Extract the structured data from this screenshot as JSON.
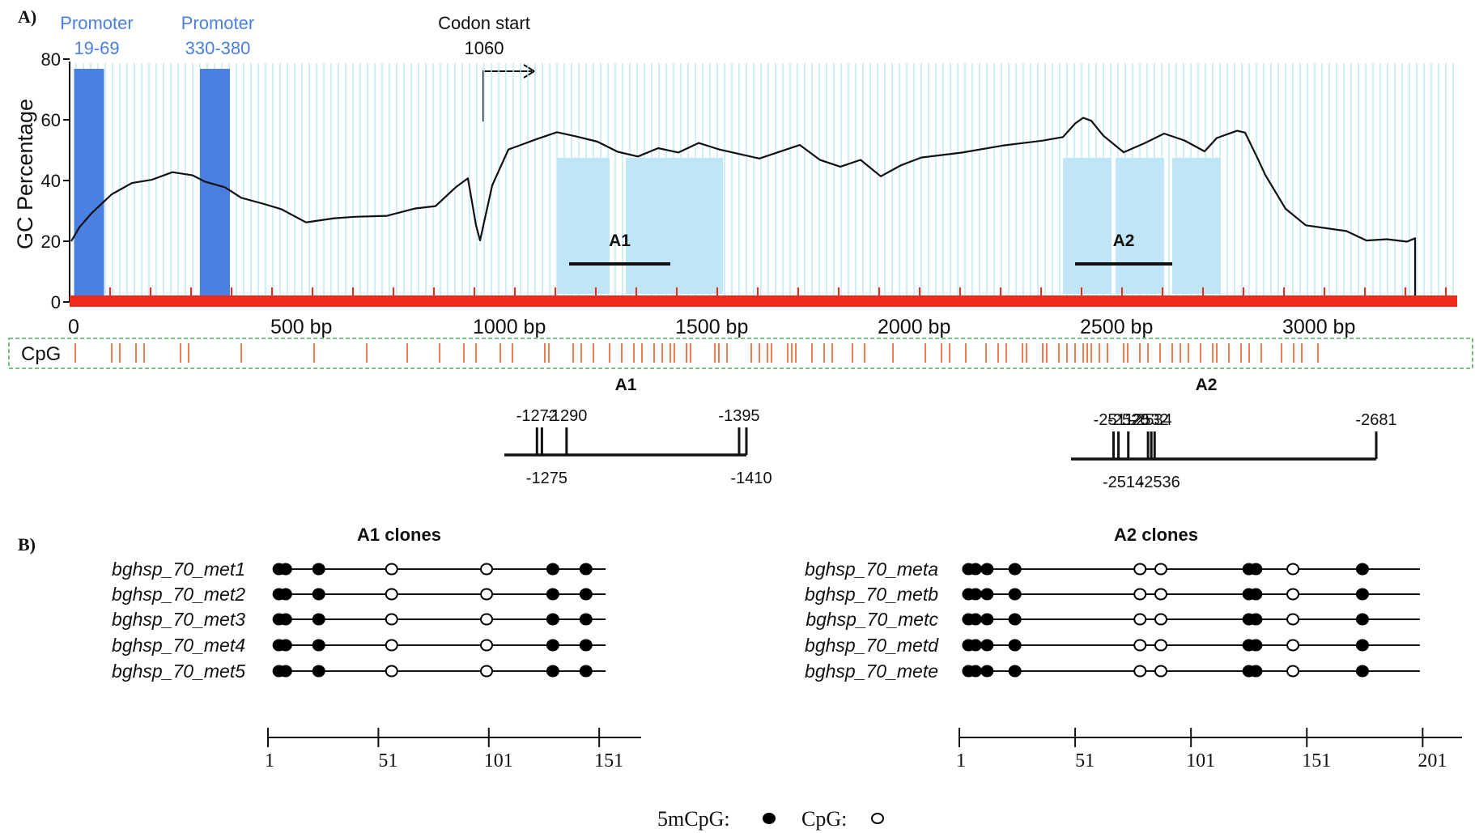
{
  "panel_a": {
    "label": "A)",
    "promoters": [
      {
        "title": "Promoter",
        "range": "19-69",
        "start": 19,
        "end": 69
      },
      {
        "title": "Promoter",
        "range": "330-380",
        "start": 330,
        "end": 380
      }
    ],
    "codon_start": {
      "title": "Codon start",
      "value": "1060",
      "position": 1000
    },
    "y_axis_label": "GC Percentage",
    "y_ticks": [
      {
        "value": 0,
        "label": "0"
      },
      {
        "value": 20,
        "label": "20"
      },
      {
        "value": 40,
        "label": "40"
      },
      {
        "value": 60,
        "label": "60"
      },
      {
        "value": 80,
        "label": "80"
      }
    ],
    "x_ticks": [
      {
        "value": 0,
        "label": "0"
      },
      {
        "value": 500,
        "label": "500  bp"
      },
      {
        "value": 1000,
        "label": "1000  bp"
      },
      {
        "value": 1500,
        "label": "1500  bp"
      },
      {
        "value": 2000,
        "label": "2000  bp"
      },
      {
        "value": 2500,
        "label": "2500  bp"
      },
      {
        "value": 3000,
        "label": "3000  bp"
      }
    ],
    "sequence_length": 3300,
    "regions": [
      {
        "label": "A1",
        "bar_start": 1230,
        "bar_end": 1480,
        "shaded": [
          [
            1200,
            1330
          ],
          [
            1370,
            1610
          ]
        ]
      },
      {
        "label": "A2",
        "bar_start": 2480,
        "bar_end": 2720,
        "shaded": [
          [
            2450,
            2570
          ],
          [
            2580,
            2700
          ],
          [
            2720,
            2840
          ]
        ]
      }
    ],
    "gc_profile": {
      "x": [
        0,
        20,
        50,
        100,
        150,
        200,
        250,
        300,
        330,
        380,
        420,
        480,
        520,
        580,
        650,
        700,
        780,
        850,
        900,
        950,
        980,
        1000,
        1010,
        1040,
        1080,
        1150,
        1200,
        1250,
        1300,
        1350,
        1400,
        1450,
        1500,
        1550,
        1600,
        1700,
        1800,
        1850,
        1900,
        1950,
        2000,
        2050,
        2100,
        2200,
        2300,
        2400,
        2450,
        2480,
        2500,
        2520,
        2550,
        2600,
        2650,
        2700,
        2750,
        2800,
        2830,
        2880,
        2900,
        2930,
        2950,
        3000,
        3050,
        3100,
        3150,
        3200,
        3250,
        3300,
        3320,
        3320
      ],
      "y": [
        20,
        24,
        30,
        35,
        39,
        41,
        42,
        42,
        40,
        37,
        35,
        32,
        30,
        27,
        27,
        28,
        29,
        30,
        32,
        38,
        40,
        26,
        20,
        38,
        51,
        53,
        56,
        55,
        52,
        50,
        48,
        50,
        50,
        52,
        50,
        48,
        51,
        47,
        45,
        46,
        42,
        45,
        47,
        50,
        51,
        53,
        55,
        58,
        61,
        60,
        54,
        50,
        52,
        55,
        54,
        49,
        54,
        57,
        55,
        48,
        42,
        30,
        26,
        24,
        23,
        21,
        20,
        20,
        21,
        0
      ]
    },
    "cpg_label": "CpG",
    "cpg_positions": [
      10,
      100,
      120,
      160,
      180,
      270,
      290,
      420,
      600,
      730,
      830,
      910,
      970,
      1000,
      1060,
      1090,
      1170,
      1180,
      1240,
      1260,
      1290,
      1330,
      1360,
      1390,
      1410,
      1440,
      1460,
      1480,
      1490,
      1520,
      1530,
      1590,
      1600,
      1620,
      1680,
      1700,
      1720,
      1730,
      1770,
      1780,
      1790,
      1830,
      1860,
      1880,
      1930,
      1960,
      2030,
      2110,
      2150,
      2170,
      2210,
      2260,
      2290,
      2310,
      2350,
      2360,
      2400,
      2410,
      2440,
      2460,
      2480,
      2500,
      2510,
      2520,
      2540,
      2560,
      2600,
      2610,
      2640,
      2660,
      2690,
      2720,
      2740,
      2760,
      2790,
      2820,
      2830,
      2860,
      2890,
      2910,
      2940,
      2990,
      3020,
      3040,
      3080
    ],
    "amplicon_maps": [
      {
        "label": "A1",
        "sites_top": [
          {
            "label": "-1272",
            "value": 1272
          },
          {
            "label": "-1290",
            "value": 1290
          },
          {
            "label": "-1395",
            "value": 1395
          }
        ],
        "sites_bottom": [
          {
            "label": "-1275",
            "value": 1275
          },
          {
            "label": "-1410",
            "value": 1410
          }
        ]
      },
      {
        "label": "A2",
        "sites_top": [
          {
            "label": "-2511",
            "value": 2511
          },
          {
            "label": "-2520",
            "value": 2520
          },
          {
            "label": "-2532",
            "value": 2532
          },
          {
            "label": "-2534",
            "value": 2534
          },
          {
            "label": "-2681",
            "value": 2681
          }
        ],
        "sites_bottom": [
          {
            "label": "-2514",
            "value": 2514
          },
          {
            "label": "-2536",
            "value": 2536
          }
        ]
      }
    ]
  },
  "panel_b": {
    "label": "B)",
    "groups": [
      {
        "title": "A1 clones",
        "clones": [
          "bghsp_70_met1",
          "bghsp_70_met2",
          "bghsp_70_met3",
          "bghsp_70_met4",
          "bghsp_70_met5"
        ],
        "axis_ticks": [
          {
            "value": 1,
            "label": "1"
          },
          {
            "value": 51,
            "label": "51"
          },
          {
            "value": 101,
            "label": "101"
          },
          {
            "value": 151,
            "label": "151"
          }
        ],
        "axis_max": 170,
        "line_end": 151,
        "sites": [
          {
            "pos": 6,
            "methylated": true
          },
          {
            "pos": 9,
            "methylated": true
          },
          {
            "pos": 24,
            "methylated": true
          },
          {
            "pos": 57,
            "methylated": false
          },
          {
            "pos": 100,
            "methylated": false
          },
          {
            "pos": 130,
            "methylated": true
          },
          {
            "pos": 145,
            "methylated": true
          }
        ]
      },
      {
        "title": "A2 clones",
        "clones": [
          "bghsp_70_meta",
          "bghsp_70_metb",
          "bghsp_70_metc",
          "bghsp_70_metd",
          "bghsp_70_mete"
        ],
        "axis_ticks": [
          {
            "value": 1,
            "label": "1"
          },
          {
            "value": 51,
            "label": "51"
          },
          {
            "value": 101,
            "label": "101"
          },
          {
            "value": 151,
            "label": "151"
          },
          {
            "value": 201,
            "label": "201"
          }
        ],
        "axis_max": 218,
        "line_end": 197,
        "sites": [
          {
            "pos": 5,
            "methylated": true
          },
          {
            "pos": 8,
            "methylated": true
          },
          {
            "pos": 13,
            "methylated": true
          },
          {
            "pos": 25,
            "methylated": true
          },
          {
            "pos": 79,
            "methylated": false
          },
          {
            "pos": 88,
            "methylated": false
          },
          {
            "pos": 126,
            "methylated": true
          },
          {
            "pos": 129,
            "methylated": true
          },
          {
            "pos": 145,
            "methylated": false
          },
          {
            "pos": 175,
            "methylated": true
          }
        ]
      }
    ],
    "legend": {
      "methylated": "5mCpG:",
      "unmethylated": "CpG:"
    }
  }
}
